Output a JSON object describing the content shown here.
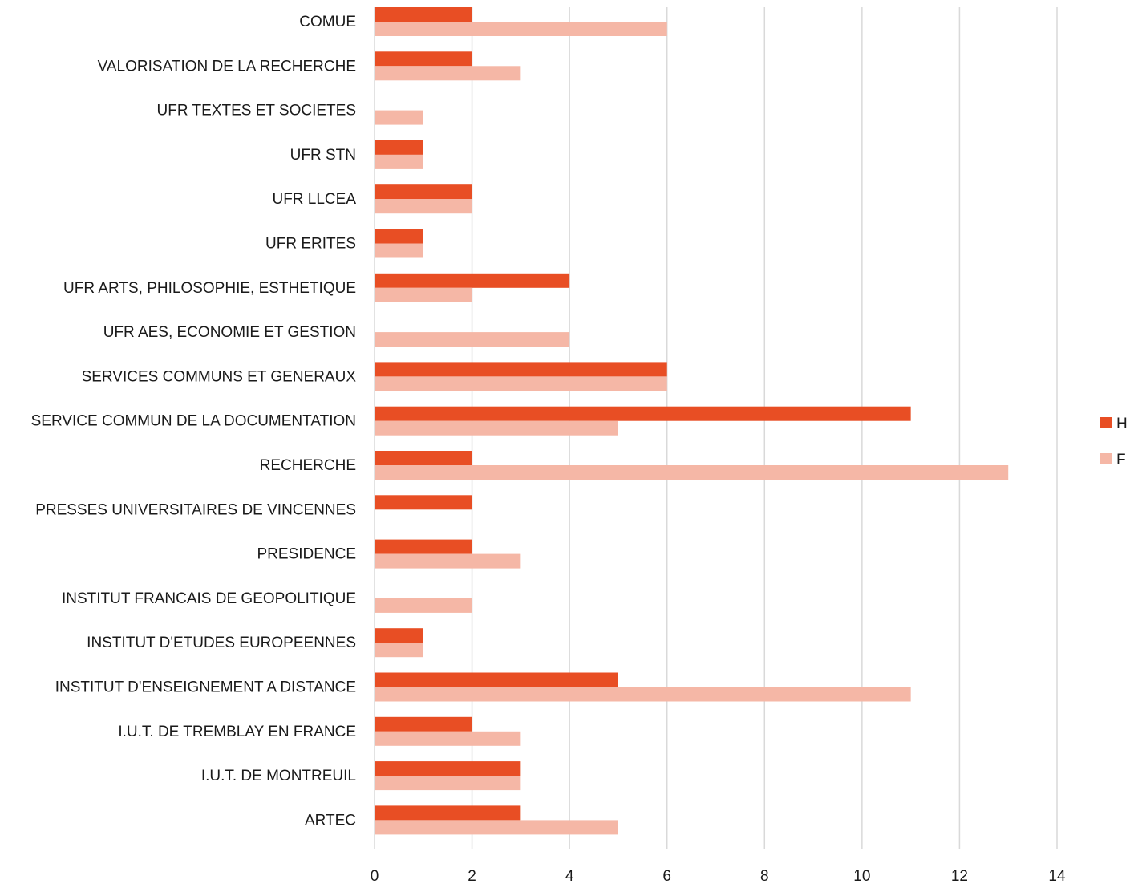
{
  "chart_data": {
    "type": "bar",
    "orientation": "horizontal",
    "title": "",
    "xlabel": "",
    "ylabel": "",
    "categories": [
      "COMUE",
      "VALORISATION DE LA RECHERCHE",
      "UFR TEXTES ET SOCIETES",
      "UFR STN",
      "UFR LLCEA",
      "UFR ERITES",
      "UFR ARTS, PHILOSOPHIE, ESTHETIQUE",
      "UFR AES, ECONOMIE ET GESTION",
      "SERVICES COMMUNS ET GENERAUX",
      "SERVICE COMMUN DE LA DOCUMENTATION",
      "RECHERCHE",
      "PRESSES UNIVERSITAIRES DE VINCENNES",
      "PRESIDENCE",
      "INSTITUT FRANCAIS DE GEOPOLITIQUE",
      "INSTITUT D'ETUDES EUROPEENNES",
      "INSTITUT D'ENSEIGNEMENT A DISTANCE",
      "I.U.T. DE TREMBLAY EN FRANCE",
      "I.U.T. DE MONTREUIL",
      "ARTEC"
    ],
    "series": [
      {
        "name": "H",
        "color": "#e84e24",
        "values": [
          2,
          2,
          0,
          1,
          2,
          1,
          4,
          0,
          6,
          11,
          2,
          2,
          2,
          0,
          1,
          5,
          2,
          3,
          3
        ]
      },
      {
        "name": "F",
        "color": "#f5b7a6",
        "values": [
          6,
          3,
          1,
          1,
          2,
          1,
          2,
          4,
          6,
          5,
          13,
          0,
          3,
          2,
          1,
          11,
          3,
          3,
          5
        ]
      }
    ],
    "xlim": [
      0,
      14
    ],
    "xticks": [
      "0",
      "2",
      "4",
      "6",
      "8",
      "10",
      "12",
      "14"
    ],
    "grid": true,
    "legend_position": "right"
  }
}
